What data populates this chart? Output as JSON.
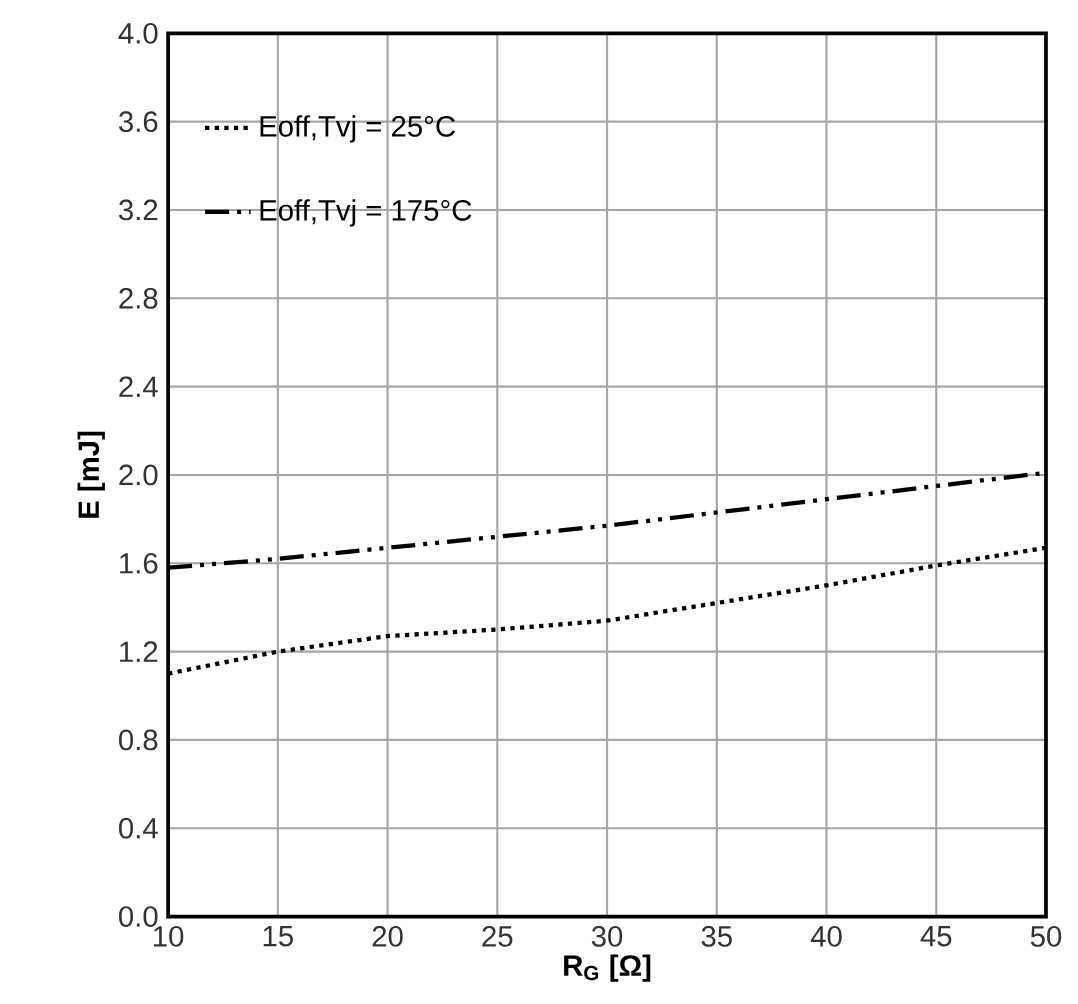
{
  "chart_data": {
    "type": "line",
    "xlabel": "R$_{G}$ [Ω]",
    "ylabel": "E [mJ]",
    "x": [
      10,
      15,
      20,
      25,
      30,
      35,
      40,
      45,
      50
    ],
    "series": [
      {
        "name": "Eoff,Tvj = 25°C",
        "color": "#000000",
        "line_style": "dotted",
        "values": [
          1.1,
          1.2,
          1.27,
          1.3,
          1.34,
          1.42,
          1.5,
          1.59,
          1.67
        ]
      },
      {
        "name": "Eoff,Tvj = 175°C",
        "color": "#000000",
        "line_style": "dashdotdot",
        "values": [
          1.58,
          1.62,
          1.67,
          1.72,
          1.77,
          1.83,
          1.89,
          1.95,
          2.01
        ]
      }
    ],
    "xlim": [
      10,
      50
    ],
    "xticks": [
      10,
      15,
      20,
      25,
      30,
      35,
      40,
      45,
      50
    ],
    "ylim": [
      0,
      4
    ],
    "yticks": [
      {
        "value": 0,
        "label": "0.0"
      },
      {
        "value": 0.4,
        "label": "0.4"
      },
      {
        "value": 0.8,
        "label": "0.8"
      },
      {
        "value": 1.2,
        "label": "1.2"
      },
      {
        "value": 1.6,
        "label": "1.6"
      },
      {
        "value": 2.0,
        "label": "2.0"
      },
      {
        "value": 2.4,
        "label": "2.4"
      },
      {
        "value": 2.8,
        "label": "2.8"
      },
      {
        "value": 3.2,
        "label": "3.2"
      },
      {
        "value": 3.6,
        "label": "3.6"
      },
      {
        "value": 4.0,
        "label": "4.0"
      }
    ],
    "grid": true,
    "legend": "top left",
    "marker": "none"
  }
}
